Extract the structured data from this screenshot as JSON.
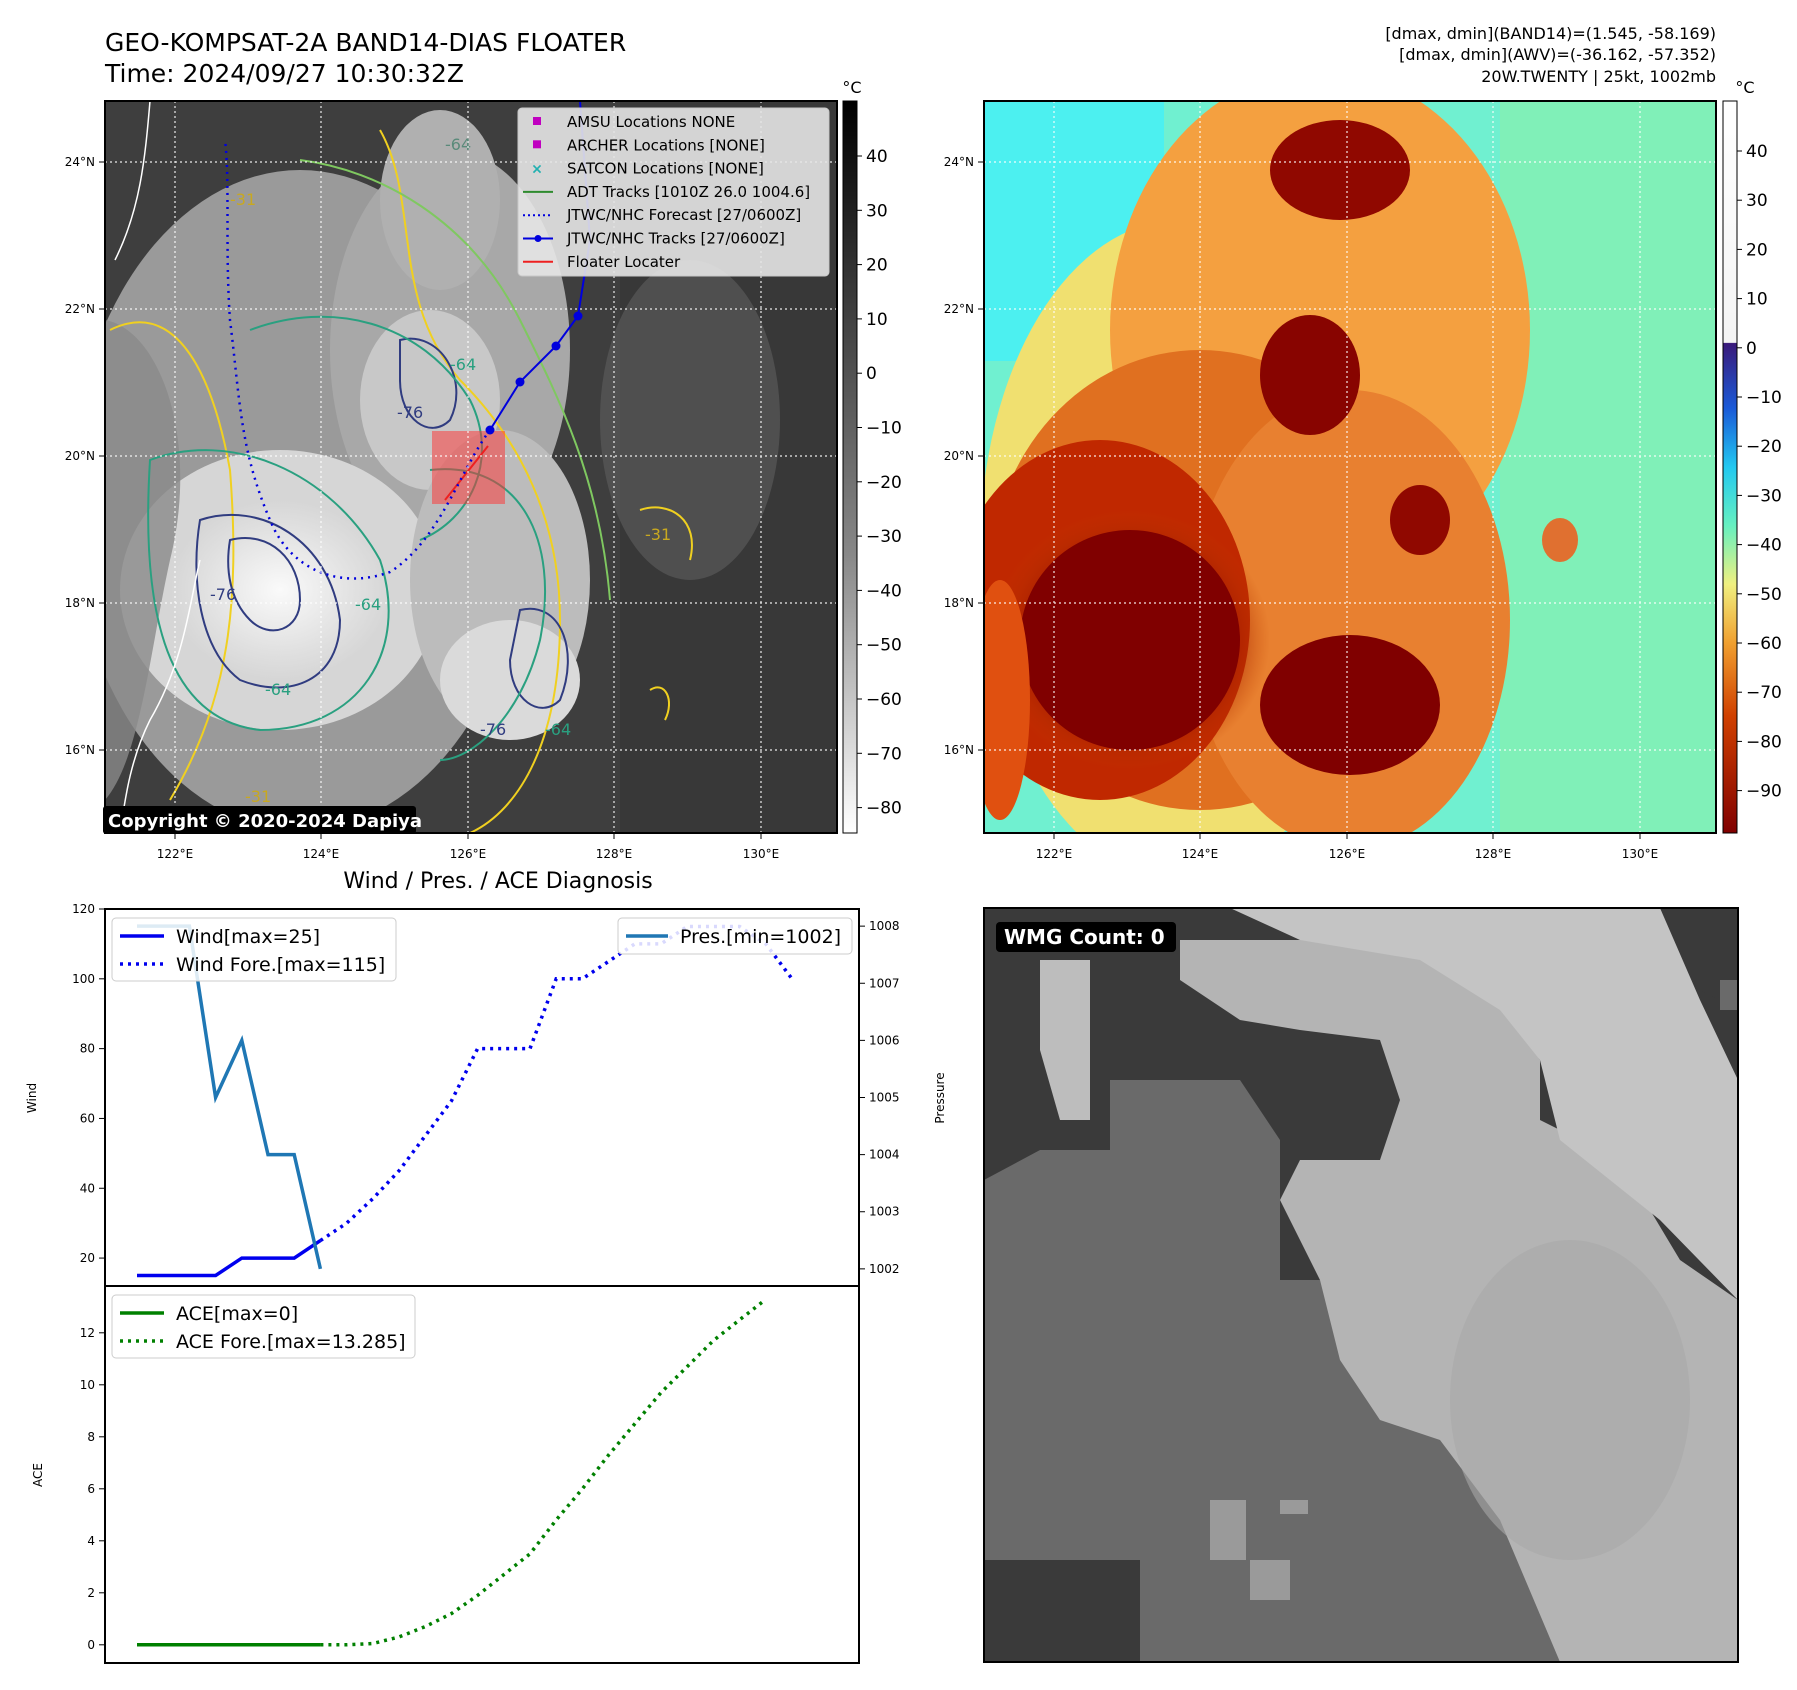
{
  "header": {
    "title_line1": "GEO-KOMPSAT-2A BAND14-DIAS FLOATER",
    "title_line2": "Time: 2024/09/27 10:30:32Z",
    "info_line1": "[dmax, dmin](BAND14)=(1.545, -58.169)",
    "info_line2": "[dmax, dmin](AWV)=(-36.162, -57.352)",
    "info_line3": "20W.TWENTY | 25kt, 1002mb"
  },
  "copyright": "Copyright © 2020-2024 Dapiya",
  "map_axes": {
    "lon_ticks": [
      "122°E",
      "124°E",
      "126°E",
      "128°E",
      "130°E"
    ],
    "lat_ticks": [
      "24°N",
      "22°N",
      "20°N",
      "18°N",
      "16°N"
    ]
  },
  "colorbar_left": {
    "unit": "°C",
    "ticks": [
      "40",
      "30",
      "20",
      "10",
      "0",
      "−10",
      "−20",
      "−30",
      "−40",
      "−50",
      "−60",
      "−70",
      "−80"
    ]
  },
  "colorbar_right": {
    "unit": "°C",
    "ticks": [
      "40",
      "30",
      "20",
      "10",
      "0",
      "−10",
      "−20",
      "−30",
      "−40",
      "−50",
      "−60",
      "−70",
      "−80",
      "−90"
    ]
  },
  "map_legend": [
    {
      "label": "AMSU Locations NONE",
      "symbol": "square",
      "color": "#c000c0"
    },
    {
      "label": "ARCHER Locations [NONE]",
      "symbol": "square",
      "color": "#c000c0"
    },
    {
      "label": "SATCON Locations [NONE]",
      "symbol": "x",
      "color": "#20b0b0"
    },
    {
      "label": "ADT Tracks [1010Z 26.0 1004.6]",
      "symbol": "line",
      "color": "#2e8b2e"
    },
    {
      "label": "JTWC/NHC Forecast [27/0600Z]",
      "symbol": "dotted",
      "color": "#0000dd"
    },
    {
      "label": "JTWC/NHC Tracks [27/0600Z]",
      "symbol": "line-dot",
      "color": "#0000dd"
    },
    {
      "label": "Floater Locater",
      "symbol": "line",
      "color": "#ee2020"
    }
  ],
  "contour_labels": [
    "-64",
    "-76",
    "-64",
    "-31",
    "-76",
    "-64",
    "-31",
    "-64",
    "-76",
    "-64",
    "-31"
  ],
  "wmg": {
    "label": "WMG Count: 0"
  },
  "diag": {
    "title": "Wind / Pres. / ACE Diagnosis",
    "wind_ylabel": "Wind",
    "pres_ylabel": "Pressure",
    "ace_ylabel": "ACE",
    "wind_yticks": [
      "120",
      "100",
      "80",
      "60",
      "40",
      "20"
    ],
    "pres_yticks": [
      "1008",
      "1007",
      "1006",
      "1005",
      "1004",
      "1003",
      "1002"
    ],
    "ace_yticks": [
      "12",
      "10",
      "8",
      "6",
      "4",
      "2",
      "0"
    ],
    "legend_wind": "Wind[max=25]",
    "legend_wind_fore": "Wind Fore.[max=115]",
    "legend_pres": "Pres.[min=1002]",
    "legend_ace": "ACE[max=0]",
    "legend_ace_fore": "ACE Fore.[max=13.285]"
  },
  "chart_data": [
    {
      "type": "line",
      "title": "Wind / Pres. / ACE Diagnosis",
      "ylabel": "Wind",
      "y2label": "Pressure",
      "ylim": [
        12,
        120
      ],
      "y2lim": [
        1001.7,
        1008.3
      ],
      "series": [
        {
          "name": "Wind[max=25]",
          "axis": "left",
          "color": "#0000ee",
          "style": "solid",
          "values": [
            15,
            15,
            15,
            15,
            20,
            20,
            20,
            25
          ]
        },
        {
          "name": "Wind Fore.[max=115]",
          "axis": "left",
          "color": "#0000ee",
          "style": "dotted",
          "x_start": 7,
          "values": [
            25,
            30,
            37,
            45,
            55,
            65,
            80,
            80,
            80,
            100,
            100,
            105,
            110,
            110,
            115,
            115,
            115,
            110,
            100
          ]
        },
        {
          "name": "Pres.[min=1002]",
          "axis": "right",
          "color": "#1f77b4",
          "style": "solid",
          "values": [
            1008,
            1008,
            1008,
            1005,
            1006,
            1004,
            1004,
            1002
          ]
        }
      ]
    },
    {
      "type": "line",
      "ylabel": "ACE",
      "ylim": [
        -0.7,
        13.8
      ],
      "series": [
        {
          "name": "ACE[max=0]",
          "color": "#008000",
          "style": "solid",
          "values": [
            0,
            0,
            0,
            0,
            0,
            0,
            0,
            0
          ]
        },
        {
          "name": "ACE Fore.[max=13.285]",
          "color": "#008000",
          "style": "dotted",
          "x_start": 7,
          "values": [
            0,
            0,
            0.05,
            0.3,
            0.7,
            1.2,
            1.9,
            2.7,
            3.5,
            4.8,
            6.0,
            7.3,
            8.5,
            9.7,
            10.7,
            11.7,
            12.5,
            13.285
          ]
        }
      ]
    }
  ]
}
